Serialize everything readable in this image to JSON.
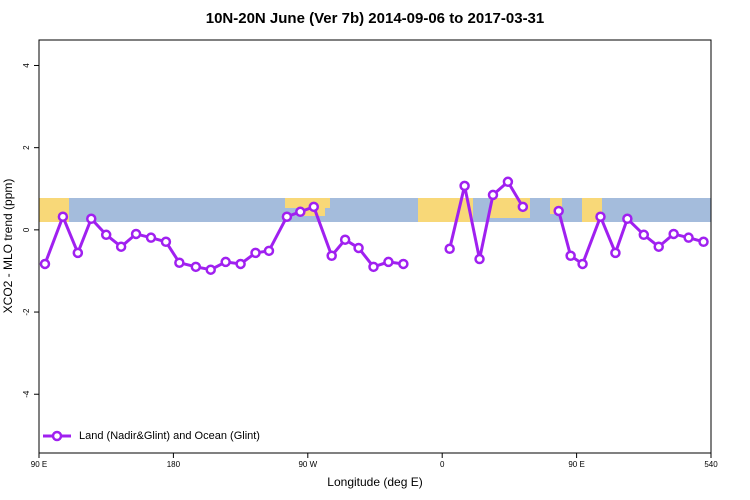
{
  "chart_data": {
    "type": "line",
    "title": "10N-20N June (Ver 7b)   2014-09-06 to 2017-03-31",
    "x_label": "Longitude (deg E)",
    "y_label": "XCO2 - MLO trend (ppm)",
    "xlim": [
      90,
      540
    ],
    "ylim": [
      -5.43,
      4.62
    ],
    "xticks": [
      {
        "value": 90,
        "label": "90 E"
      },
      180,
      {
        "value": 270,
        "label": "90 W"
      },
      {
        "value": 360,
        "label": "0"
      },
      {
        "value": 450,
        "label": "90 E"
      },
      540
    ],
    "yticks": [
      -4,
      -2,
      0,
      2,
      4
    ],
    "x": [
      94,
      106,
      116,
      125,
      135,
      145,
      155,
      165,
      175,
      184,
      195,
      205,
      215,
      225,
      235,
      244,
      256,
      265,
      274,
      286,
      295,
      304,
      314,
      324,
      334,
      null,
      365,
      375,
      385,
      394,
      404,
      414,
      null,
      438,
      446,
      454,
      466,
      476,
      484,
      495,
      505,
      515,
      525,
      535
    ],
    "series": [
      {
        "name": "Land (Nadir&Glint) and Ocean (Glint)",
        "color": "#a020f0",
        "values": [
          -0.83,
          0.32,
          -0.56,
          0.27,
          -0.12,
          -0.41,
          -0.1,
          -0.19,
          -0.29,
          -0.8,
          -0.9,
          -0.97,
          -0.78,
          -0.83,
          -0.56,
          -0.51,
          0.32,
          0.44,
          0.56,
          -0.63,
          -0.24,
          -0.44,
          -0.9,
          -0.78,
          -0.83,
          null,
          -0.46,
          1.07,
          -0.71,
          0.85,
          1.17,
          0.56,
          null,
          0.46,
          -0.63,
          -0.83,
          0.32,
          -0.56,
          0.27,
          -0.12,
          -0.41,
          -0.1,
          -0.19,
          -0.29
        ]
      }
    ],
    "legend": "bottom-left"
  }
}
